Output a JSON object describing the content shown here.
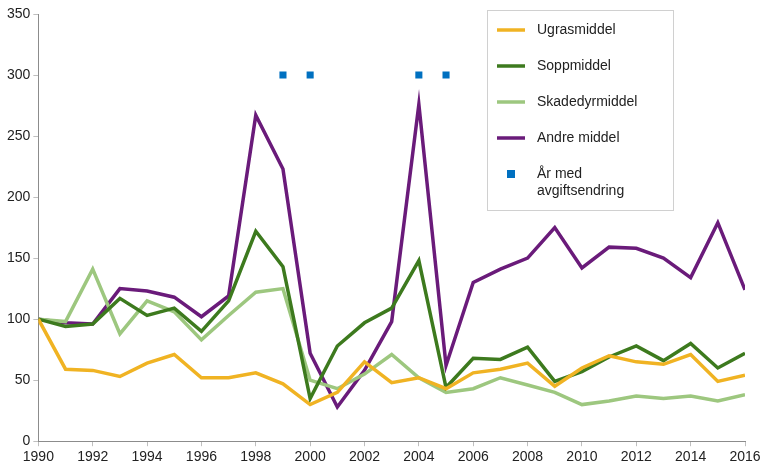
{
  "chart_data": {
    "type": "line",
    "x": [
      1990,
      1991,
      1992,
      1993,
      1994,
      1995,
      1996,
      1997,
      1998,
      1999,
      2000,
      2001,
      2002,
      2003,
      2004,
      2005,
      2006,
      2007,
      2008,
      2009,
      2010,
      2011,
      2012,
      2013,
      2014,
      2015,
      2016
    ],
    "series": [
      {
        "name": "Ugrasmiddel",
        "color": "#f0b323",
        "type": "line",
        "values": [
          100,
          59,
          58,
          53,
          64,
          71,
          52,
          52,
          56,
          47,
          30,
          40,
          65,
          48,
          52,
          43,
          56,
          59,
          64,
          45,
          60,
          70,
          65,
          63,
          71,
          49,
          54
        ]
      },
      {
        "name": "Soppmiddel",
        "color": "#3d7a1e",
        "type": "line",
        "values": [
          100,
          94,
          96,
          117,
          103,
          109,
          90,
          115,
          172,
          143,
          35,
          78,
          97,
          109,
          148,
          44,
          68,
          67,
          77,
          49,
          57,
          69,
          78,
          66,
          80,
          60,
          72
        ]
      },
      {
        "name": "Skadedyrmiddel",
        "color": "#9dc77f",
        "type": "line",
        "values": [
          100,
          98,
          141,
          88,
          115,
          106,
          83,
          103,
          122,
          125,
          50,
          43,
          55,
          71,
          52,
          40,
          43,
          52,
          46,
          40,
          30,
          33,
          37,
          35,
          37,
          33,
          38
        ]
      },
      {
        "name": "Andre middel",
        "color": "#6a1b7a",
        "type": "line",
        "values": [
          100,
          97,
          96,
          125,
          123,
          118,
          102,
          119,
          267,
          223,
          72,
          28,
          58,
          98,
          276,
          62,
          130,
          141,
          150,
          175,
          142,
          159,
          158,
          150,
          134,
          179,
          124
        ]
      },
      {
        "name": "År med avgiftsendring",
        "color": "#0070c0",
        "type": "scatter",
        "marker": "square",
        "values": [
          null,
          null,
          null,
          null,
          null,
          null,
          null,
          null,
          null,
          300,
          300,
          null,
          null,
          null,
          300,
          300,
          null,
          null,
          null,
          null,
          null,
          null,
          null,
          null,
          null,
          null,
          null
        ]
      }
    ],
    "xlim": [
      1990,
      2016
    ],
    "xticks": [
      1990,
      1992,
      1994,
      1996,
      1998,
      2000,
      2002,
      2004,
      2006,
      2008,
      2010,
      2012,
      2014,
      2016
    ],
    "ylim": [
      0,
      350
    ],
    "yticks": [
      0,
      50,
      100,
      150,
      200,
      250,
      300,
      350
    ],
    "grid": false,
    "legend": "upper right"
  }
}
